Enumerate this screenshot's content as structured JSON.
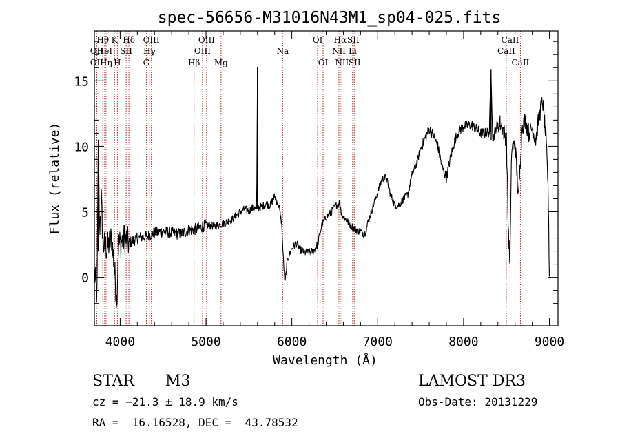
{
  "chart_data": {
    "type": "line",
    "title": "spec-56656-M31016N43M1_sp04-025.fits",
    "xlabel": "Wavelength (Å)",
    "ylabel": "Flux (relative)",
    "xlim": [
      3700,
      9100
    ],
    "ylim": [
      -3.7,
      18.8
    ],
    "x_ticks": [
      4000,
      5000,
      6000,
      7000,
      8000,
      9000
    ],
    "x_tick_labels": [
      "4000",
      "5000",
      "6000",
      "7000",
      "8000",
      "9000"
    ],
    "y_ticks": [
      0,
      5,
      10,
      15
    ],
    "y_tick_labels": [
      "0",
      "5",
      "10",
      "15"
    ],
    "grid": false,
    "series": [
      {
        "name": "spectrum",
        "anchors": [
          [
            3700,
            0.3
          ],
          [
            3730,
            -1.5
          ],
          [
            3745,
            10.5
          ],
          [
            3760,
            3.5
          ],
          [
            3780,
            6.0
          ],
          [
            3800,
            2.5
          ],
          [
            3850,
            2.2
          ],
          [
            3900,
            3.0
          ],
          [
            3930,
            1.0
          ],
          [
            3960,
            -1.8
          ],
          [
            3980,
            2.5
          ],
          [
            4050,
            3.0
          ],
          [
            4100,
            2.6
          ],
          [
            4200,
            3.0
          ],
          [
            4300,
            3.1
          ],
          [
            4400,
            3.4
          ],
          [
            4500,
            3.5
          ],
          [
            4600,
            3.4
          ],
          [
            4700,
            3.3
          ],
          [
            4800,
            3.6
          ],
          [
            4900,
            3.7
          ],
          [
            5000,
            4.0
          ],
          [
            5100,
            3.9
          ],
          [
            5200,
            4.1
          ],
          [
            5300,
            4.4
          ],
          [
            5400,
            5.0
          ],
          [
            5450,
            5.2
          ],
          [
            5500,
            5.1
          ],
          [
            5550,
            5.3
          ],
          [
            5590,
            5.2
          ],
          [
            5600,
            16.0
          ],
          [
            5603,
            5.3
          ],
          [
            5650,
            5.4
          ],
          [
            5700,
            5.6
          ],
          [
            5750,
            5.5
          ],
          [
            5800,
            6.2
          ],
          [
            5850,
            5.4
          ],
          [
            5880,
            4.2
          ],
          [
            5900,
            1.5
          ],
          [
            5920,
            -0.5
          ],
          [
            5950,
            1.4
          ],
          [
            6000,
            2.2
          ],
          [
            6050,
            2.6
          ],
          [
            6100,
            2.1
          ],
          [
            6150,
            1.9
          ],
          [
            6200,
            1.9
          ],
          [
            6250,
            2.0
          ],
          [
            6300,
            2.5
          ],
          [
            6350,
            4.0
          ],
          [
            6400,
            4.6
          ],
          [
            6450,
            4.9
          ],
          [
            6500,
            5.4
          ],
          [
            6560,
            5.7
          ],
          [
            6580,
            4.8
          ],
          [
            6620,
            4.5
          ],
          [
            6680,
            4.0
          ],
          [
            6750,
            3.6
          ],
          [
            6800,
            3.5
          ],
          [
            6850,
            3.3
          ],
          [
            6900,
            4.5
          ],
          [
            6950,
            5.5
          ],
          [
            7000,
            6.5
          ],
          [
            7050,
            7.5
          ],
          [
            7100,
            7.6
          ],
          [
            7150,
            6.3
          ],
          [
            7200,
            5.5
          ],
          [
            7250,
            5.5
          ],
          [
            7300,
            6.0
          ],
          [
            7350,
            6.3
          ],
          [
            7400,
            7.8
          ],
          [
            7450,
            8.6
          ],
          [
            7500,
            9.8
          ],
          [
            7550,
            10.6
          ],
          [
            7600,
            11.3
          ],
          [
            7650,
            10.8
          ],
          [
            7700,
            10.0
          ],
          [
            7750,
            8.4
          ],
          [
            7800,
            7.6
          ],
          [
            7850,
            9.2
          ],
          [
            7900,
            10.5
          ],
          [
            7950,
            11.2
          ],
          [
            8000,
            11.5
          ],
          [
            8050,
            11.6
          ],
          [
            8100,
            11.6
          ],
          [
            8150,
            11.3
          ],
          [
            8200,
            11.0
          ],
          [
            8250,
            11.0
          ],
          [
            8300,
            11.1
          ],
          [
            8320,
            15.9
          ],
          [
            8340,
            10.5
          ],
          [
            8380,
            11.5
          ],
          [
            8420,
            11.8
          ],
          [
            8460,
            11.3
          ],
          [
            8500,
            10.5
          ],
          [
            8520,
            4.0
          ],
          [
            8540,
            1.0
          ],
          [
            8560,
            9.8
          ],
          [
            8600,
            10.2
          ],
          [
            8640,
            6.0
          ],
          [
            8680,
            11.5
          ],
          [
            8720,
            12.0
          ],
          [
            8760,
            11.0
          ],
          [
            8800,
            11.4
          ],
          [
            8840,
            10.5
          ],
          [
            8880,
            12.3
          ],
          [
            8920,
            13.5
          ],
          [
            8960,
            10.5
          ],
          [
            8985,
            7.0
          ],
          [
            9000,
            0.0
          ]
        ]
      }
    ],
    "line_markers": [
      {
        "label": "Hθ",
        "x": 3798,
        "row": 1
      },
      {
        "label": "OII",
        "x": 3727,
        "row": 2
      },
      {
        "label": "OII",
        "x": 3727,
        "row": 3
      },
      {
        "label": "HeI",
        "x": 3820,
        "row": 2
      },
      {
        "label": "Hη",
        "x": 3835,
        "row": 3
      },
      {
        "label": "K",
        "x": 3934,
        "row": 1
      },
      {
        "label": "H",
        "x": 3968,
        "row": 3
      },
      {
        "label": "SII",
        "x": 4070,
        "row": 2
      },
      {
        "label": "Hδ",
        "x": 4102,
        "row": 1
      },
      {
        "label": "OIII",
        "x": 4363,
        "row": 1
      },
      {
        "label": "Hγ",
        "x": 4340,
        "row": 2
      },
      {
        "label": "G",
        "x": 4305,
        "row": 3
      },
      {
        "label": "OIII",
        "x": 5007,
        "row": 1
      },
      {
        "label": "OIII",
        "x": 4959,
        "row": 2
      },
      {
        "label": "Hβ",
        "x": 4861,
        "row": 3
      },
      {
        "label": "Mg",
        "x": 5175,
        "row": 3
      },
      {
        "label": "Na",
        "x": 5893,
        "row": 2
      },
      {
        "label": "OI",
        "x": 6300,
        "row": 1
      },
      {
        "label": "OI",
        "x": 6364,
        "row": 3
      },
      {
        "label": "Hα",
        "x": 6563,
        "row": 1
      },
      {
        "label": "SII",
        "x": 6716,
        "row": 1
      },
      {
        "label": "NII",
        "x": 6548,
        "row": 2
      },
      {
        "label": "Li",
        "x": 6708,
        "row": 2
      },
      {
        "label": "NII",
        "x": 6583,
        "row": 3
      },
      {
        "label": "SII",
        "x": 6731,
        "row": 3
      },
      {
        "label": "CaII",
        "x": 8542,
        "row": 1
      },
      {
        "label": "CaII",
        "x": 8498,
        "row": 2
      },
      {
        "label": "CaII",
        "x": 8662,
        "row": 3
      }
    ]
  },
  "info": {
    "object_class": "STAR",
    "subclass": "M3",
    "survey": "LAMOST DR3",
    "redshift": "cz = −21.3 ± 18.9 km/s",
    "obs_date": "Obs-Date: 20131229",
    "coords": "RA =  16.16528, DEC =  43.78532"
  },
  "colors": {
    "spectrum": "#000000",
    "marker_line": "#b22222",
    "axis": "#000000"
  }
}
